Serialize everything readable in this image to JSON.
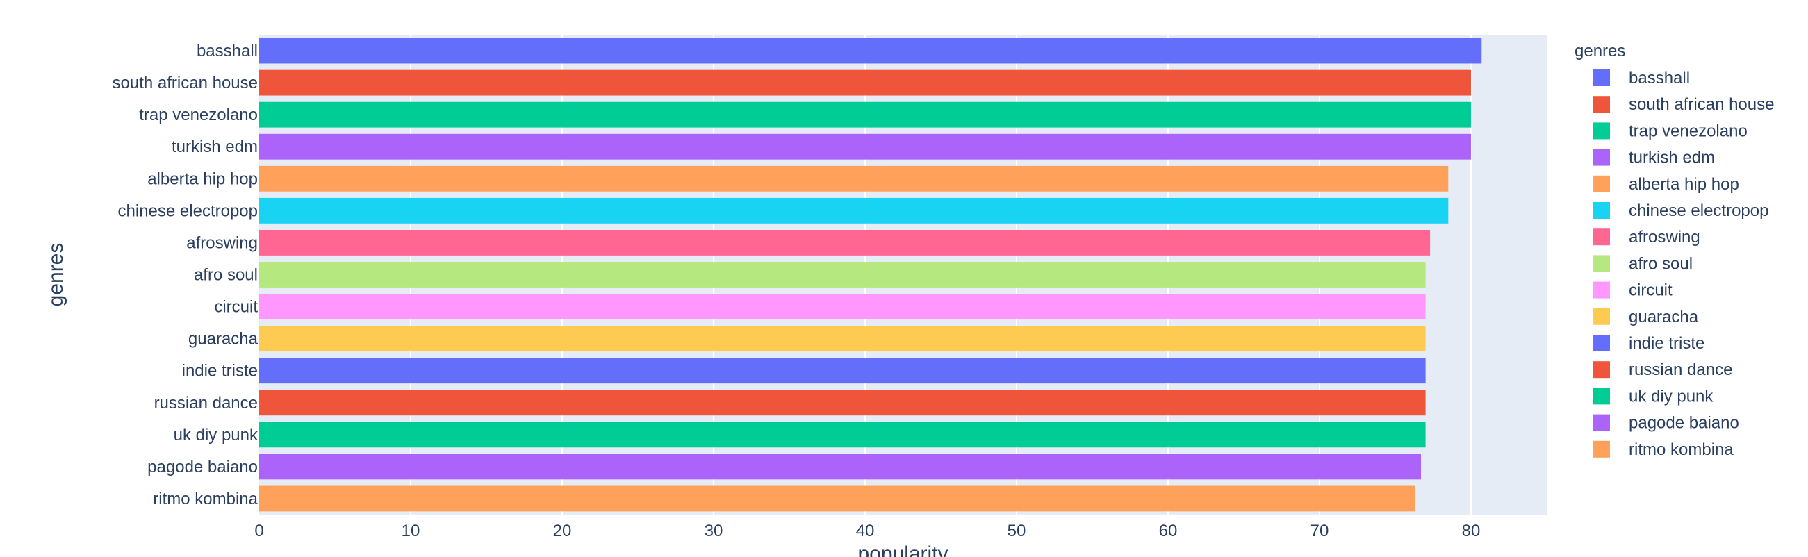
{
  "chart_data": {
    "type": "bar",
    "orientation": "horizontal",
    "title": "",
    "xlabel": "popularity",
    "ylabel": "genres",
    "xlim": [
      0,
      85
    ],
    "x_ticks": [
      0,
      10,
      20,
      30,
      40,
      50,
      60,
      70,
      80
    ],
    "grid": true,
    "legend": {
      "title": "genres",
      "placement": "right"
    },
    "categories": [
      "basshall",
      "south african house",
      "trap venezolano",
      "turkish edm",
      "alberta hip hop",
      "chinese electropop",
      "afroswing",
      "afro soul",
      "circuit",
      "guaracha",
      "indie triste",
      "russian dance",
      "uk diy punk",
      "pagode baiano",
      "ritmo kombina"
    ],
    "series": [
      {
        "name": "basshall",
        "category": "basshall",
        "value": 80.7,
        "color": "#636efa"
      },
      {
        "name": "south african house",
        "category": "south african house",
        "value": 80.0,
        "color": "#EF553B"
      },
      {
        "name": "trap venezolano",
        "category": "trap venezolano",
        "value": 80.0,
        "color": "#00cc96"
      },
      {
        "name": "turkish edm",
        "category": "turkish edm",
        "value": 80.0,
        "color": "#ab63fa"
      },
      {
        "name": "alberta hip hop",
        "category": "alberta hip hop",
        "value": 78.5,
        "color": "#FFA15A"
      },
      {
        "name": "chinese electropop",
        "category": "chinese electropop",
        "value": 78.5,
        "color": "#19d3f3"
      },
      {
        "name": "afroswing",
        "category": "afroswing",
        "value": 77.3,
        "color": "#FF6692"
      },
      {
        "name": "afro soul",
        "category": "afro soul",
        "value": 77.0,
        "color": "#B6E880"
      },
      {
        "name": "circuit",
        "category": "circuit",
        "value": 77.0,
        "color": "#FF97FF"
      },
      {
        "name": "guaracha",
        "category": "guaracha",
        "value": 77.0,
        "color": "#FECB52"
      },
      {
        "name": "indie triste",
        "category": "indie triste",
        "value": 77.0,
        "color": "#636efa"
      },
      {
        "name": "russian dance",
        "category": "russian dance",
        "value": 77.0,
        "color": "#EF553B"
      },
      {
        "name": "uk diy punk",
        "category": "uk diy punk",
        "value": 77.0,
        "color": "#00cc96"
      },
      {
        "name": "pagode baiano",
        "category": "pagode baiano",
        "value": 76.7,
        "color": "#ab63fa"
      },
      {
        "name": "ritmo kombina",
        "category": "ritmo kombina",
        "value": 76.3,
        "color": "#FFA15A"
      }
    ],
    "colors": {
      "plot_background": "#E5ECF6",
      "grid": "#ffffff",
      "text": "#2a3f5f"
    }
  }
}
